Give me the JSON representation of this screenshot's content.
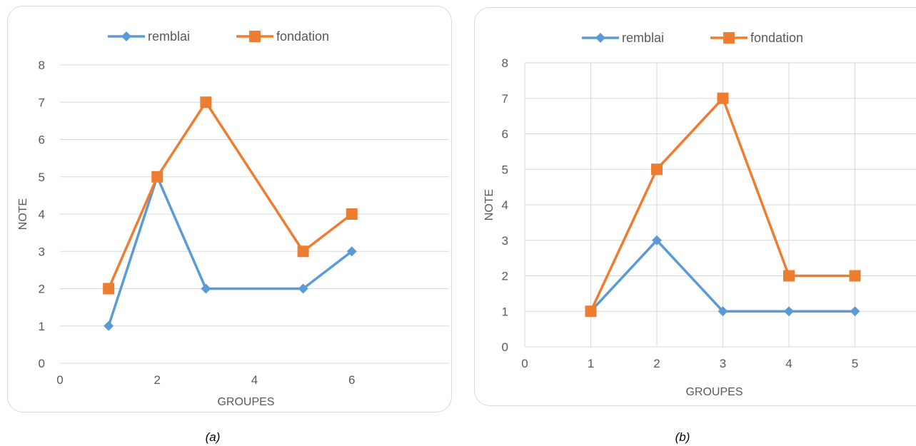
{
  "captions": [
    "(a)",
    "(b)"
  ],
  "chart_data": [
    {
      "type": "scatter",
      "xlabel": "GROUPES",
      "ylabel": "NOTE",
      "xlim": [
        0,
        8
      ],
      "ylim": [
        0,
        8
      ],
      "x_ticks": [
        0,
        2,
        4,
        6
      ],
      "y_ticks": [
        0,
        1,
        2,
        3,
        4,
        5,
        6,
        7,
        8
      ],
      "grid": "horizontal",
      "legend_position": "top",
      "series": [
        {
          "name": "remblai",
          "color": "#5b9bd5",
          "marker": "diamond",
          "x": [
            1,
            2,
            3,
            5,
            6
          ],
          "y": [
            1,
            5,
            2,
            2,
            3
          ]
        },
        {
          "name": "fondation",
          "color": "#ed7d31",
          "marker": "square",
          "x": [
            1,
            2,
            3,
            5,
            6
          ],
          "y": [
            2,
            5,
            7,
            3,
            4
          ]
        }
      ]
    },
    {
      "type": "scatter",
      "xlabel": "GROUPES",
      "ylabel": "NOTE",
      "xlim": [
        0,
        6
      ],
      "ylim": [
        0,
        8
      ],
      "x_ticks": [
        0,
        1,
        2,
        3,
        4,
        5
      ],
      "y_ticks": [
        0,
        1,
        2,
        3,
        4,
        5,
        6,
        7,
        8
      ],
      "grid": "both",
      "legend_position": "top",
      "series": [
        {
          "name": "remblai",
          "color": "#5b9bd5",
          "marker": "diamond",
          "x": [
            1,
            2,
            3,
            4,
            5
          ],
          "y": [
            1,
            3,
            1,
            1,
            1
          ]
        },
        {
          "name": "fondation",
          "color": "#ed7d31",
          "marker": "square",
          "x": [
            1,
            2,
            3,
            4,
            5
          ],
          "y": [
            1,
            5,
            7,
            2,
            2
          ]
        }
      ]
    }
  ]
}
